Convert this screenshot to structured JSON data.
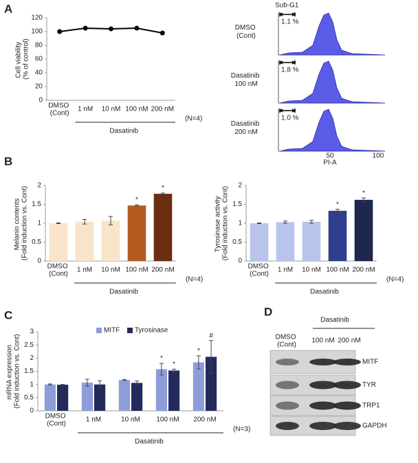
{
  "panel_labels": [
    "A",
    "B",
    "C",
    "D"
  ],
  "chart_data": [
    {
      "type": "line",
      "y_label": "Cell viability (% of control)",
      "categories": [
        "DMSO (Cont)",
        "1 nM",
        "10 nM",
        "100 nM",
        "200 nM"
      ],
      "values": [
        100,
        105,
        104,
        105,
        98
      ],
      "color": "#000000",
      "ylim": [
        0,
        120
      ],
      "yticks": [
        0,
        20,
        40,
        60,
        80,
        100,
        120
      ],
      "group_label": "Dasatinib",
      "note": "(N=4)"
    },
    {
      "type": "bar",
      "y_label": "Melanin contents (Fold induction vs. Cont)",
      "categories": [
        "DMSO (Cont)",
        "1 nM",
        "10 nM",
        "100 nM",
        "200 nM"
      ],
      "values": [
        1.0,
        1.04,
        1.07,
        1.47,
        1.78
      ],
      "errors": [
        0.01,
        0.06,
        0.11,
        0.02,
        0.02
      ],
      "colors": [
        "#f8e4c8",
        "#f8e4c8",
        "#f8e4c8",
        "#b35a20",
        "#6b2e12"
      ],
      "significance": [
        null,
        null,
        null,
        "*",
        "*"
      ],
      "ylim": [
        0,
        2
      ],
      "yticks": [
        0,
        0.5,
        1,
        1.5,
        2
      ],
      "group_label": "Dasatinib",
      "note": "(N=4)"
    },
    {
      "type": "bar",
      "y_label": "Tyrosinase  activity (Fold induction vs. Cont)",
      "categories": [
        "DMSO (Cont)",
        "1 nM",
        "10 nM",
        "100 nM",
        "200 nM"
      ],
      "values": [
        1.0,
        1.03,
        1.04,
        1.33,
        1.62
      ],
      "errors": [
        0.01,
        0.03,
        0.04,
        0.04,
        0.05
      ],
      "colors": [
        "#b8c4ec",
        "#b8c4ec",
        "#b8c4ec",
        "#2f3f8e",
        "#1e2750"
      ],
      "significance": [
        null,
        null,
        null,
        "*",
        "*"
      ],
      "ylim": [
        0,
        2
      ],
      "yticks": [
        0,
        0.5,
        1,
        1.5,
        2
      ],
      "group_label": "Dasatinib",
      "note": "(N=4)"
    },
    {
      "type": "grouped_bar",
      "y_label": "mRNA expression (Fold induction vs. Cont)",
      "categories": [
        "DMSO (Cont)",
        "1 nM",
        "10 nM",
        "100 nM",
        "200 nM"
      ],
      "series": [
        {
          "name": "MITF",
          "color": "#8e9dda",
          "values": [
            1.0,
            1.07,
            1.17,
            1.58,
            1.84
          ],
          "errors": [
            0.02,
            0.13,
            0.02,
            0.22,
            0.25
          ],
          "significance": [
            null,
            null,
            null,
            "*",
            "*"
          ]
        },
        {
          "name": "Tyrosinase",
          "color": "#232b5c",
          "values": [
            0.99,
            1.0,
            1.06,
            1.53,
            2.05
          ],
          "errors": [
            0.01,
            0.14,
            0.07,
            0.05,
            0.62
          ],
          "significance": [
            null,
            null,
            null,
            "*",
            "#"
          ]
        }
      ],
      "ylim": [
        0,
        3
      ],
      "yticks": [
        0,
        0.5,
        1,
        1.5,
        2,
        2.5,
        3
      ],
      "group_label": "Dasatinib",
      "note": "(N=3)"
    }
  ],
  "flow_cytometry": {
    "gate_label": "Sub-G1",
    "x_label": "PI-A",
    "x_tick_labels": [
      "50",
      "100"
    ],
    "rows": [
      {
        "label": "DMSO (Cont)",
        "percent": "1.1 %"
      },
      {
        "label": "Dasatinib 100 nM",
        "percent": "1.8 %"
      },
      {
        "label": "Dasatinib 200 nM",
        "percent": "1.0 %"
      }
    ]
  },
  "western_blot": {
    "treatment": "Dasatinib",
    "lanes": [
      "DMSO (Cont)",
      "100 nM",
      "200 nM"
    ],
    "bands": [
      "MITF",
      "TYR",
      "TRP1",
      "GAPDH"
    ]
  }
}
